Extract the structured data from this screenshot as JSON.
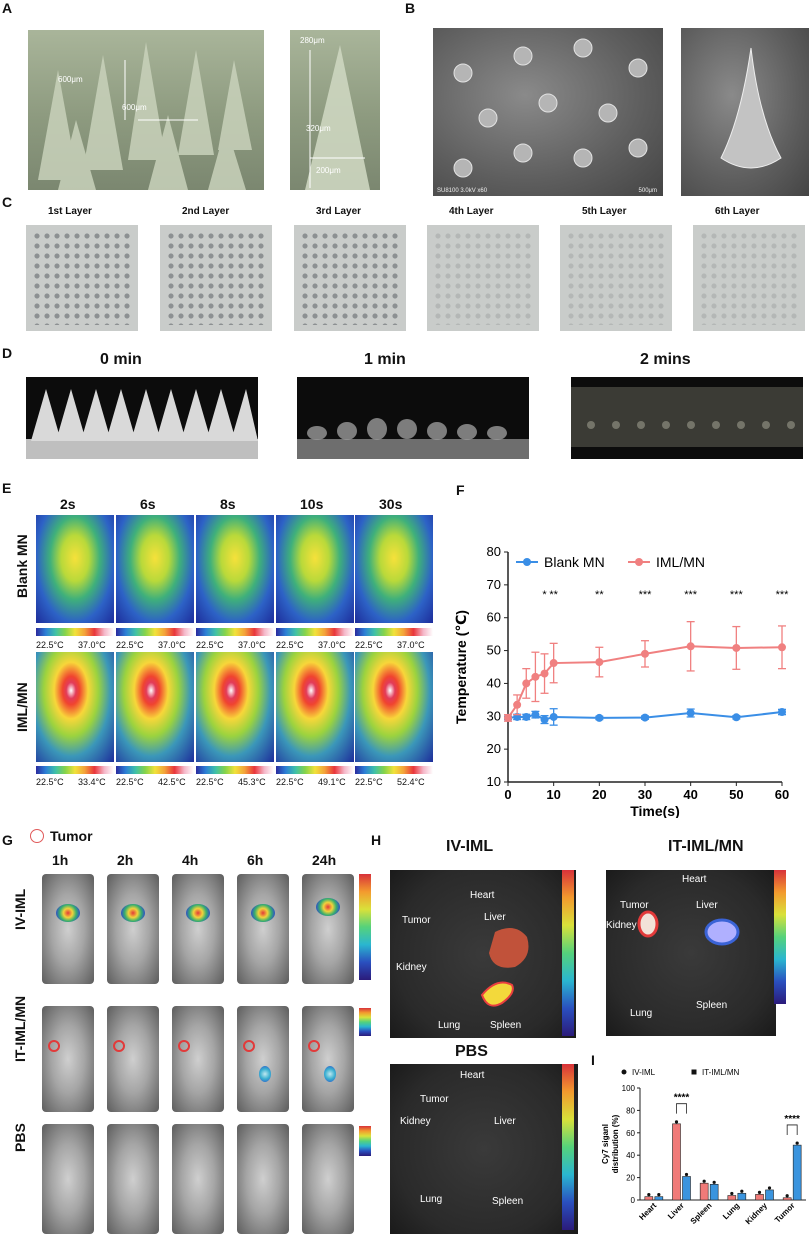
{
  "panels": {
    "A": "A",
    "B": "B",
    "C": "C",
    "D": "D",
    "E": "E",
    "F": "F",
    "G": "G",
    "H": "H",
    "I": "I"
  },
  "panelA": {
    "dim_600_v": "600μm",
    "dim_600_h": "600μm",
    "dim_280": "280μm",
    "dim_320": "320μm",
    "dim_200": "200μm"
  },
  "panelB": {
    "sem_caption": "SU8100 3.0kV x60",
    "scale_caption": "500μm"
  },
  "panelC": {
    "layers": [
      "1st Layer",
      "2nd Layer",
      "3rd Layer",
      "4th Layer",
      "5th  Layer",
      "6th Layer"
    ]
  },
  "panelD": {
    "times": [
      "0 min",
      "1 min",
      "2 mins"
    ]
  },
  "panelE": {
    "times": [
      "2s",
      "6s",
      "8s",
      "10s",
      "30s"
    ],
    "rows": [
      "Blank MN",
      "IML/MN"
    ],
    "blank_scale_low": [
      "22.5°C",
      "22.5°C",
      "22.5°C",
      "22.5°C",
      "22.5°C"
    ],
    "blank_scale_high": [
      "37.0°C",
      "37.0°C",
      "37.0°C",
      "37.0°C",
      "37.0°C"
    ],
    "iml_scale_low": [
      "22.5°C",
      "22.5°C",
      "22.5°C",
      "22.5°C",
      "22.5°C"
    ],
    "iml_scale_high": [
      "33.4°C",
      "42.5°C",
      "45.3°C",
      "49.1°C",
      "52.4°C"
    ]
  },
  "panelG": {
    "legend": "Tumor",
    "times": [
      "1h",
      "2h",
      "4h",
      "6h",
      "24h"
    ],
    "rows": [
      "IV-IML",
      "IT-IML/MN",
      "PBS"
    ]
  },
  "panelH": {
    "titles": [
      "IV-IML",
      "IT-IML/MN",
      "PBS"
    ],
    "organs": {
      "heart": "Heart",
      "tumor": "Tumor",
      "liver": "Liver",
      "kidney": "Kidney",
      "lung": "Lung",
      "spleen": "Spleen"
    }
  },
  "colors": {
    "blank": "#3a8ee6",
    "iml": "#f08080",
    "iv_bar": "#f07a78",
    "it_bar": "#3a94de"
  },
  "chart_data": [
    {
      "type": "line",
      "xlabel": "Time(s)",
      "ylabel": "Temperature (℃)",
      "xlim": [
        0,
        60
      ],
      "ylim": [
        10,
        80
      ],
      "xticks": [
        0,
        10,
        20,
        30,
        40,
        50,
        60
      ],
      "yticks": [
        10,
        20,
        30,
        40,
        50,
        60,
        70,
        80
      ],
      "legend_position": "top",
      "series": [
        {
          "name": "Blank MN",
          "x": [
            0,
            2,
            4,
            6,
            8,
            10,
            20,
            30,
            40,
            50,
            60
          ],
          "y": [
            29.5,
            29.8,
            29.8,
            30.5,
            29.0,
            29.8,
            29.5,
            29.6,
            31.0,
            29.7,
            31.3
          ],
          "err": [
            0.5,
            0.8,
            0.8,
            1.0,
            1.2,
            2.5,
            0.5,
            0.5,
            1.2,
            0.5,
            0.8
          ]
        },
        {
          "name": "IML/MN",
          "x": [
            0,
            2,
            4,
            6,
            8,
            10,
            20,
            30,
            40,
            50,
            60
          ],
          "y": [
            29.5,
            33.5,
            40.0,
            42.0,
            43.0,
            46.2,
            46.5,
            49.0,
            51.3,
            50.8,
            51.0
          ],
          "err": [
            1.0,
            3.0,
            4.5,
            7.5,
            6.0,
            6.0,
            4.5,
            4.0,
            7.5,
            6.5,
            6.5
          ]
        }
      ],
      "significance": [
        {
          "x": 8,
          "label": "*"
        },
        {
          "x": 10,
          "label": "**"
        },
        {
          "x": 20,
          "label": "**"
        },
        {
          "x": 30,
          "label": "***"
        },
        {
          "x": 40,
          "label": "***"
        },
        {
          "x": 50,
          "label": "***"
        },
        {
          "x": 60,
          "label": "***"
        }
      ]
    },
    {
      "type": "bar",
      "categories": [
        "Heart",
        "Liver",
        "Spleen",
        "Lung",
        "Kidney",
        "Tumor"
      ],
      "ylabel": "Cy7 siganl\ndistribution (%)",
      "ylim": [
        0,
        100
      ],
      "yticks": [
        0,
        20,
        40,
        60,
        80,
        100
      ],
      "legend_position": "top",
      "series": [
        {
          "name": "IV-IML",
          "values": [
            3,
            68,
            15,
            4,
            5,
            2
          ]
        },
        {
          "name": "IT-IML/MN",
          "values": [
            3,
            21,
            14,
            6,
            9,
            49
          ]
        }
      ],
      "significance": [
        {
          "category": "Liver",
          "label": "****"
        },
        {
          "category": "Tumor",
          "label": "****"
        }
      ]
    }
  ]
}
